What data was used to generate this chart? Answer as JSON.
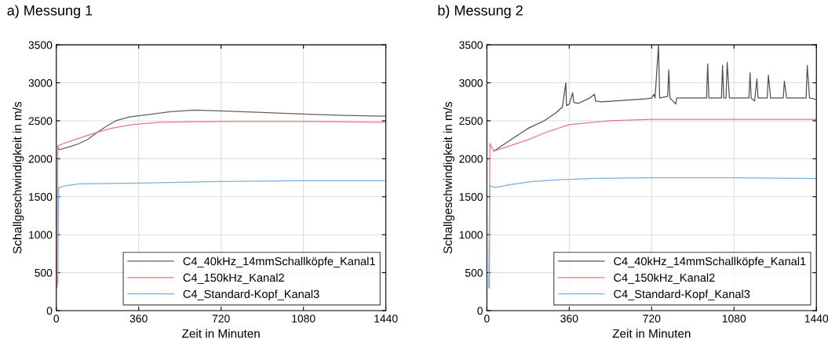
{
  "chart_data": [
    {
      "type": "line",
      "title": "a) Messung 1",
      "xlabel": "Zeit in Minuten",
      "ylabel": "Schallgeschwindigkeit in m/s",
      "xlim": [
        0,
        1440
      ],
      "xticks": [
        0,
        360,
        720,
        1080,
        1440
      ],
      "ylim": [
        0,
        3500
      ],
      "yticks": [
        0,
        500,
        1000,
        1500,
        2000,
        2500,
        3000,
        3500
      ],
      "grid": true,
      "legend": "bottom right",
      "line_style": "solid",
      "marker": "none",
      "series": [
        {
          "name": "C4_40kHz_14mmSchallköpfe_Kanal1",
          "color": "#606060",
          "x": [
            5,
            15,
            60,
            100,
            140,
            180,
            220,
            260,
            320,
            400,
            500,
            600,
            720,
            900,
            1080,
            1260,
            1440
          ],
          "values": [
            2150,
            2120,
            2160,
            2200,
            2260,
            2350,
            2430,
            2500,
            2550,
            2580,
            2620,
            2640,
            2630,
            2610,
            2590,
            2570,
            2560
          ]
        },
        {
          "name": "C4_150kHz_Kanal2",
          "color": "#e8797b",
          "x": [
            4,
            5,
            7,
            40,
            80,
            160,
            240,
            330,
            450,
            720,
            1080,
            1440
          ],
          "values": [
            300,
            1500,
            2170,
            2210,
            2250,
            2330,
            2400,
            2450,
            2480,
            2490,
            2490,
            2480
          ]
        },
        {
          "name": "C4_Standard-Kopf_Kanal3",
          "color": "#7aaee0",
          "x": [
            7,
            8,
            10,
            50,
            100,
            360,
            720,
            1080,
            1440
          ],
          "values": [
            350,
            1000,
            1620,
            1650,
            1670,
            1680,
            1700,
            1710,
            1710
          ]
        }
      ]
    },
    {
      "type": "line",
      "title": "b) Messung 2",
      "xlabel": "Zeit in Minuten",
      "ylabel": "Schallgeschwindigkeit in m/s",
      "xlim": [
        0,
        1440
      ],
      "xticks": [
        0,
        360,
        720,
        1080,
        1440
      ],
      "ylim": [
        0,
        3500
      ],
      "yticks": [
        0,
        500,
        1000,
        1500,
        2000,
        2500,
        3000,
        3500
      ],
      "grid": true,
      "legend": "bottom right",
      "line_style": "solid",
      "marker": "none",
      "series": [
        {
          "name": "C4_40kHz_14mmSchallköpfe_Kanal1",
          "color": "#505050",
          "x": [
            30,
            80,
            130,
            180,
            250,
            300,
            330,
            345,
            348,
            360,
            375,
            380,
            400,
            450,
            470,
            475,
            500,
            600,
            700,
            720,
            730,
            735,
            750,
            755,
            790,
            795,
            800,
            825,
            830,
            900,
            960,
            965,
            970,
            1025,
            1030,
            1035,
            1045,
            1050,
            1060,
            1145,
            1150,
            1155,
            1170,
            1180,
            1185,
            1225,
            1230,
            1240,
            1295,
            1300,
            1310,
            1395,
            1400,
            1410,
            1440
          ],
          "values": [
            2100,
            2200,
            2300,
            2400,
            2500,
            2600,
            2680,
            3000,
            2700,
            2720,
            2870,
            2740,
            2730,
            2800,
            2850,
            2760,
            2750,
            2770,
            2790,
            2800,
            2850,
            2800,
            3500,
            2800,
            2820,
            3170,
            2800,
            2720,
            2800,
            2800,
            2800,
            3250,
            2800,
            2800,
            3230,
            2800,
            2800,
            3270,
            2800,
            2800,
            3130,
            2800,
            2760,
            3050,
            2800,
            2800,
            3100,
            2800,
            2800,
            3020,
            2800,
            2800,
            3230,
            2800,
            2780
          ]
        },
        {
          "name": "C4_150kHz_Kanal2",
          "color": "#e8797b",
          "x": [
            11,
            13,
            30,
            80,
            180,
            260,
            360,
            540,
            720,
            1080,
            1440
          ],
          "values": [
            300,
            2200,
            2100,
            2150,
            2250,
            2350,
            2450,
            2500,
            2520,
            2520,
            2520
          ]
        },
        {
          "name": "C4_Standard-Kopf_Kanal3",
          "color": "#7aaee0",
          "x": [
            8,
            12,
            35,
            100,
            200,
            300,
            450,
            720,
            1080,
            1440
          ],
          "values": [
            300,
            1650,
            1620,
            1660,
            1700,
            1720,
            1740,
            1750,
            1750,
            1740
          ]
        }
      ]
    }
  ]
}
